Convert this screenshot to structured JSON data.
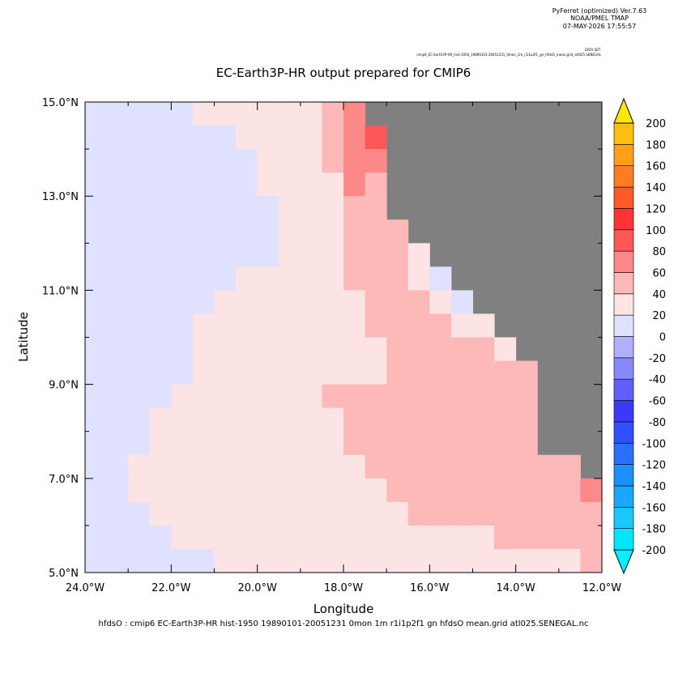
{
  "header": {
    "program": "PyFerret (optimized) Ver.7.63",
    "lab": "NOAA/PMEL TMAP",
    "date": "07-MAY-2026 17:55:57",
    "dataset_label": "DATA SET:",
    "dataset": "cmip6_EC-Earth3P-HR_hist-1950_19890101-20051231_0mon_1m_r1i1p2f1_gn_hfdsO_mean.grid_atl025.SENEGAL"
  },
  "chart_data": {
    "type": "heatmap",
    "title": "EC-Earth3P-HR output prepared for CMIP6",
    "xlabel": "Longitude",
    "ylabel": "Latitude",
    "footer": "hfdsO : cmip6 EC-Earth3P-HR hist-1950 19890101-20051231 0mon 1m r1i1p2f1 gn hfdsO mean.grid atl025.SENEGAL.nc",
    "xlim": [
      -24,
      -12
    ],
    "ylim": [
      5,
      15
    ],
    "xticks": [
      {
        "value": -24,
        "label": "24.0°W"
      },
      {
        "value": -22,
        "label": "22.0°W"
      },
      {
        "value": -20,
        "label": "20.0°W"
      },
      {
        "value": -18,
        "label": "18.0°W"
      },
      {
        "value": -16,
        "label": "16.0°W"
      },
      {
        "value": -14,
        "label": "14.0°W"
      },
      {
        "value": -12,
        "label": "12.0°W"
      }
    ],
    "xminorticks": [
      -23,
      -21,
      -19,
      -17,
      -15,
      -13
    ],
    "yticks": [
      {
        "value": 5,
        "label": "5.0°N"
      },
      {
        "value": 7,
        "label": "7.0°N"
      },
      {
        "value": 9,
        "label": "9.0°N"
      },
      {
        "value": 11,
        "label": "11.0°N"
      },
      {
        "value": 13,
        "label": "13.0°N"
      },
      {
        "value": 15,
        "label": "15.0°N"
      }
    ],
    "yminorticks": [
      6,
      8,
      10,
      12,
      14
    ],
    "land_color": "#808080",
    "x": [
      -23.75,
      -23.25,
      -22.75,
      -22.25,
      -21.75,
      -21.25,
      -20.75,
      -20.25,
      -19.75,
      -19.25,
      -18.75,
      -18.25,
      -17.75,
      -17.25,
      -16.75,
      -16.25,
      -15.75,
      -15.25,
      -14.75,
      -14.25,
      -13.75,
      -13.25,
      -12.75,
      -12.25
    ],
    "y": [
      14.75,
      14.25,
      13.75,
      13.25,
      12.75,
      12.25,
      11.75,
      11.25,
      10.75,
      10.25,
      9.75,
      9.25,
      8.75,
      8.25,
      7.75,
      7.25,
      6.75,
      6.25,
      5.75,
      5.25
    ],
    "z": [
      [
        10,
        10,
        10,
        10,
        10,
        30,
        30,
        30,
        30,
        30,
        30,
        50,
        70,
        null,
        null,
        null,
        null,
        null,
        null,
        null,
        null,
        null,
        null,
        null
      ],
      [
        10,
        10,
        10,
        10,
        10,
        10,
        10,
        30,
        30,
        30,
        30,
        50,
        70,
        90,
        null,
        null,
        null,
        null,
        null,
        null,
        null,
        null,
        null,
        null
      ],
      [
        10,
        10,
        10,
        10,
        10,
        10,
        10,
        10,
        30,
        30,
        30,
        50,
        70,
        70,
        null,
        null,
        null,
        null,
        null,
        null,
        null,
        null,
        null,
        null
      ],
      [
        10,
        10,
        10,
        10,
        10,
        10,
        10,
        10,
        30,
        30,
        30,
        30,
        70,
        50,
        null,
        null,
        null,
        null,
        null,
        null,
        null,
        null,
        null,
        null
      ],
      [
        10,
        10,
        10,
        10,
        10,
        10,
        10,
        10,
        10,
        30,
        30,
        30,
        50,
        50,
        null,
        null,
        null,
        null,
        null,
        null,
        null,
        null,
        null,
        null
      ],
      [
        10,
        10,
        10,
        10,
        10,
        10,
        10,
        10,
        10,
        30,
        30,
        30,
        50,
        50,
        50,
        null,
        null,
        null,
        null,
        null,
        null,
        null,
        null,
        null
      ],
      [
        10,
        10,
        10,
        10,
        10,
        10,
        10,
        10,
        10,
        30,
        30,
        30,
        50,
        50,
        50,
        30,
        null,
        null,
        null,
        null,
        null,
        null,
        null,
        null
      ],
      [
        10,
        10,
        10,
        10,
        10,
        10,
        10,
        30,
        30,
        30,
        30,
        30,
        50,
        50,
        50,
        30,
        10,
        null,
        null,
        null,
        null,
        null,
        null,
        null
      ],
      [
        10,
        10,
        10,
        10,
        10,
        10,
        30,
        30,
        30,
        30,
        30,
        30,
        30,
        50,
        50,
        50,
        30,
        10,
        null,
        null,
        null,
        null,
        null,
        null
      ],
      [
        10,
        10,
        10,
        10,
        10,
        30,
        30,
        30,
        30,
        30,
        30,
        30,
        30,
        50,
        50,
        50,
        50,
        30,
        30,
        null,
        null,
        null,
        null,
        null
      ],
      [
        10,
        10,
        10,
        10,
        10,
        30,
        30,
        30,
        30,
        30,
        30,
        30,
        30,
        30,
        50,
        50,
        50,
        50,
        50,
        30,
        null,
        null,
        null,
        null
      ],
      [
        10,
        10,
        10,
        10,
        10,
        30,
        30,
        30,
        30,
        30,
        30,
        30,
        30,
        30,
        50,
        50,
        50,
        50,
        50,
        50,
        50,
        null,
        null,
        null
      ],
      [
        10,
        10,
        10,
        10,
        30,
        30,
        30,
        30,
        30,
        30,
        30,
        50,
        50,
        50,
        50,
        50,
        50,
        50,
        50,
        50,
        50,
        null,
        null,
        null
      ],
      [
        10,
        10,
        10,
        30,
        30,
        30,
        30,
        30,
        30,
        30,
        30,
        30,
        50,
        50,
        50,
        50,
        50,
        50,
        50,
        50,
        50,
        null,
        null,
        null
      ],
      [
        10,
        10,
        10,
        30,
        30,
        30,
        30,
        30,
        30,
        30,
        30,
        30,
        50,
        50,
        50,
        50,
        50,
        50,
        50,
        50,
        50,
        null,
        null,
        null
      ],
      [
        10,
        10,
        30,
        30,
        30,
        30,
        30,
        30,
        30,
        30,
        30,
        30,
        30,
        50,
        50,
        50,
        50,
        50,
        50,
        50,
        50,
        50,
        50,
        null
      ],
      [
        10,
        10,
        30,
        30,
        30,
        30,
        30,
        30,
        30,
        30,
        30,
        30,
        30,
        30,
        50,
        50,
        50,
        50,
        50,
        50,
        50,
        50,
        50,
        70
      ],
      [
        10,
        10,
        10,
        30,
        30,
        30,
        30,
        30,
        30,
        30,
        30,
        30,
        30,
        30,
        30,
        50,
        50,
        50,
        50,
        50,
        50,
        50,
        50,
        50
      ],
      [
        10,
        10,
        10,
        10,
        30,
        30,
        30,
        30,
        30,
        30,
        30,
        30,
        30,
        30,
        30,
        30,
        30,
        30,
        30,
        50,
        50,
        50,
        50,
        50
      ],
      [
        10,
        10,
        10,
        10,
        10,
        10,
        30,
        30,
        30,
        30,
        30,
        30,
        30,
        30,
        30,
        30,
        30,
        30,
        30,
        30,
        30,
        30,
        30,
        50
      ]
    ],
    "levels": [
      -200,
      -180,
      -160,
      -140,
      -120,
      -100,
      -80,
      -60,
      -40,
      -20,
      0,
      20,
      40,
      60,
      80,
      100,
      120,
      140,
      160,
      180,
      200
    ],
    "colors": [
      "#00e6ff",
      "#19c8ff",
      "#1aa8ff",
      "#1a90ff",
      "#2a70ff",
      "#3050ff",
      "#3a3aff",
      "#6060ff",
      "#8888ff",
      "#b0b0ff",
      "#e0e0ff",
      "#fde4e4",
      "#fdb8b8",
      "#fd8888",
      "#fd5858",
      "#ff3535",
      "#ff5a28",
      "#ff7d20",
      "#ff9e1a",
      "#ffbe10",
      "#ffde00"
    ],
    "under_color": "#00f0ff",
    "over_color": "#ffe800"
  }
}
